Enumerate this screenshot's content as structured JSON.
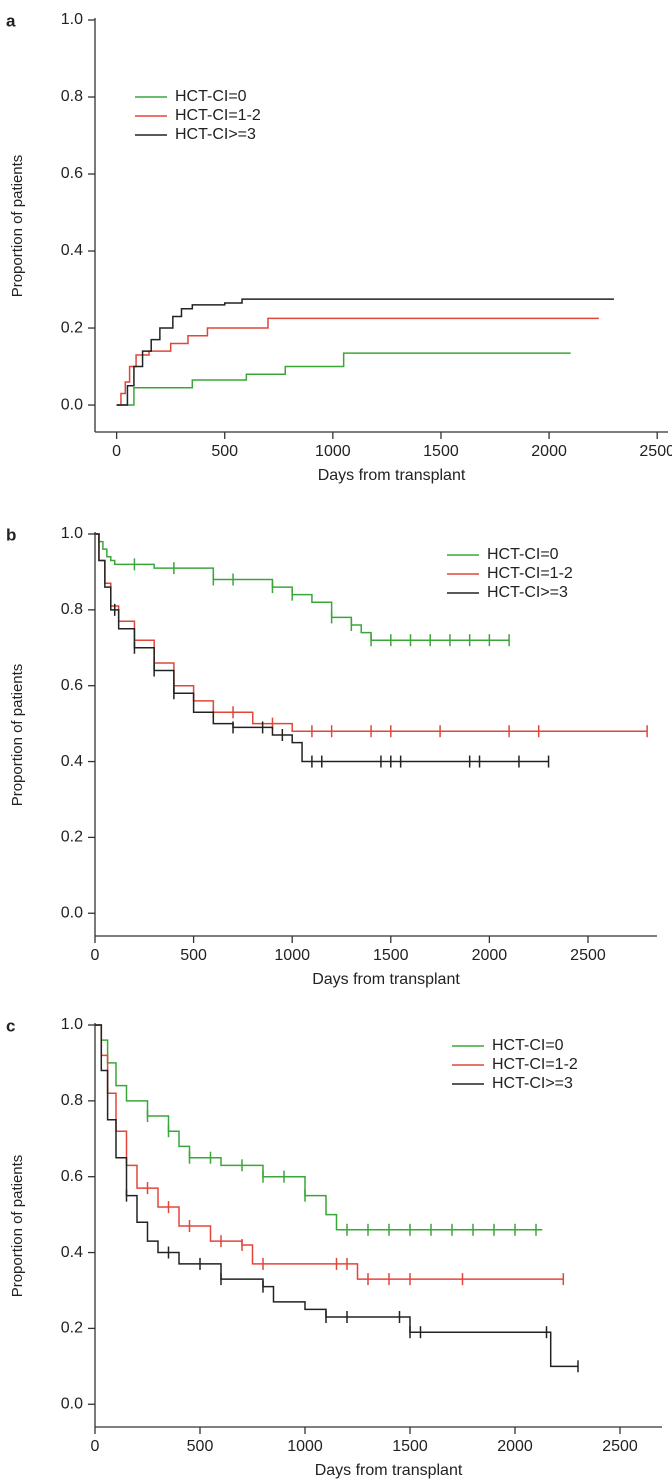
{
  "chart_data": [
    {
      "type": "step",
      "label": "a",
      "xlabel": "Days from transplant",
      "ylabel": "Proportion of patients",
      "xlim": [
        -100,
        2550
      ],
      "ylim": [
        -0.07,
        1.0
      ],
      "xticks": [
        0,
        500,
        1000,
        1500,
        2000,
        2500
      ],
      "yticks": [
        {
          "value": 0,
          "label": "0.0"
        },
        0.2,
        0.4,
        0.6,
        0.8,
        {
          "value": 1,
          "label": "1.0"
        }
      ],
      "legend": "upper left",
      "series": [
        {
          "name": "HCT-CI=0",
          "color": "#3aa63a",
          "x": [
            0,
            80,
            350,
            600,
            780,
            1050,
            2100
          ],
          "values": [
            0,
            0.045,
            0.065,
            0.08,
            0.1,
            0.135,
            0.135
          ]
        },
        {
          "name": "HCT-CI=1-2",
          "color": "#e0473a",
          "x": [
            0,
            20,
            40,
            60,
            90,
            150,
            250,
            330,
            420,
            700,
            2230
          ],
          "values": [
            0,
            0.03,
            0.06,
            0.1,
            0.13,
            0.14,
            0.16,
            0.18,
            0.2,
            0.225,
            0.225
          ]
        },
        {
          "name": "HCT-CI>=3",
          "color": "#222222",
          "x": [
            0,
            50,
            80,
            120,
            160,
            200,
            260,
            300,
            350,
            500,
            580,
            2300
          ],
          "values": [
            0,
            0.05,
            0.1,
            0.14,
            0.17,
            0.2,
            0.23,
            0.25,
            0.26,
            0.265,
            0.275,
            0.275
          ]
        }
      ]
    },
    {
      "type": "step",
      "label": "b",
      "xlabel": "Days from transplant",
      "ylabel": "Proportion of patients",
      "xlim": [
        0,
        2850
      ],
      "ylim": [
        -0.06,
        1.0
      ],
      "xticks": [
        0,
        500,
        1000,
        1500,
        2000,
        2500
      ],
      "yticks": [
        {
          "value": 0,
          "label": "0.0"
        },
        0.2,
        0.4,
        0.6,
        0.8,
        {
          "value": 1,
          "label": "1.0"
        }
      ],
      "legend": "upper right",
      "series": [
        {
          "name": "HCT-CI=0",
          "color": "#3aa63a",
          "x": [
            0,
            20,
            40,
            60,
            80,
            100,
            300,
            600,
            900,
            1000,
            1100,
            1200,
            1300,
            1350,
            1400,
            2100
          ],
          "values": [
            1,
            0.98,
            0.96,
            0.94,
            0.93,
            0.92,
            0.91,
            0.88,
            0.86,
            0.84,
            0.82,
            0.78,
            0.76,
            0.74,
            0.72,
            0.72
          ],
          "censored": {
            "x": [
              200,
              400,
              600,
              700,
              900,
              1000,
              1200,
              1300,
              1400,
              1500,
              1600,
              1700,
              1800,
              1900,
              2000,
              2100
            ],
            "values": [
              0.92,
              0.91,
              0.88,
              0.88,
              0.86,
              0.84,
              0.78,
              0.76,
              0.72,
              0.72,
              0.72,
              0.72,
              0.72,
              0.72,
              0.72,
              0.72
            ]
          }
        },
        {
          "name": "HCT-CI=1-2",
          "color": "#e0473a",
          "x": [
            0,
            20,
            50,
            80,
            120,
            200,
            300,
            400,
            500,
            600,
            800,
            1000,
            2800
          ],
          "values": [
            1,
            0.93,
            0.87,
            0.81,
            0.77,
            0.72,
            0.66,
            0.6,
            0.56,
            0.53,
            0.5,
            0.48,
            0.48
          ],
          "censored": {
            "x": [
              300,
              400,
              600,
              700,
              900,
              1100,
              1200,
              1400,
              1500,
              1750,
              2100,
              2250,
              2800
            ],
            "values": [
              0.66,
              0.6,
              0.53,
              0.53,
              0.5,
              0.48,
              0.48,
              0.48,
              0.48,
              0.48,
              0.48,
              0.48,
              0.48
            ]
          }
        },
        {
          "name": "HCT-CI>=3",
          "color": "#222222",
          "x": [
            0,
            20,
            50,
            80,
            120,
            200,
            300,
            400,
            500,
            600,
            700,
            900,
            1000,
            1050,
            2300
          ],
          "values": [
            1,
            0.93,
            0.86,
            0.8,
            0.75,
            0.7,
            0.64,
            0.58,
            0.53,
            0.5,
            0.49,
            0.47,
            0.45,
            0.4,
            0.4
          ],
          "censored": {
            "x": [
              100,
              200,
              300,
              400,
              700,
              850,
              950,
              1100,
              1150,
              1450,
              1500,
              1550,
              1900,
              1950,
              2150,
              2300
            ],
            "values": [
              0.8,
              0.7,
              0.64,
              0.58,
              0.49,
              0.49,
              0.47,
              0.4,
              0.4,
              0.4,
              0.4,
              0.4,
              0.4,
              0.4,
              0.4,
              0.4
            ]
          }
        }
      ]
    },
    {
      "type": "step",
      "label": "c",
      "xlabel": "Days from transplant",
      "ylabel": "Proportion of patients",
      "xlim": [
        0,
        2700
      ],
      "ylim": [
        -0.06,
        1.0
      ],
      "xticks": [
        0,
        500,
        1000,
        1500,
        2000,
        2500
      ],
      "yticks": [
        {
          "value": 0,
          "label": "0.0"
        },
        0.2,
        0.4,
        0.6,
        0.8,
        {
          "value": 1,
          "label": "1.0"
        }
      ],
      "legend": "upper right",
      "series": [
        {
          "name": "HCT-CI=0",
          "color": "#3aa63a",
          "x": [
            0,
            30,
            60,
            100,
            150,
            250,
            350,
            400,
            450,
            600,
            800,
            1000,
            1100,
            1150,
            2130
          ],
          "values": [
            1,
            0.96,
            0.9,
            0.84,
            0.8,
            0.76,
            0.72,
            0.68,
            0.65,
            0.63,
            0.6,
            0.55,
            0.5,
            0.46,
            0.46
          ],
          "censored": {
            "x": [
              250,
              350,
              450,
              550,
              700,
              800,
              900,
              1000,
              1200,
              1300,
              1400,
              1500,
              1600,
              1700,
              1800,
              1900,
              2000,
              2100
            ],
            "values": [
              0.76,
              0.72,
              0.65,
              0.65,
              0.63,
              0.6,
              0.6,
              0.55,
              0.46,
              0.46,
              0.46,
              0.46,
              0.46,
              0.46,
              0.46,
              0.46,
              0.46,
              0.46
            ]
          }
        },
        {
          "name": "HCT-CI=1-2",
          "color": "#e0473a",
          "x": [
            0,
            30,
            60,
            100,
            150,
            200,
            300,
            400,
            550,
            700,
            750,
            1250,
            2230
          ],
          "values": [
            1,
            0.92,
            0.82,
            0.72,
            0.63,
            0.57,
            0.52,
            0.47,
            0.43,
            0.42,
            0.37,
            0.33,
            0.33
          ],
          "censored": {
            "x": [
              250,
              350,
              450,
              600,
              700,
              800,
              1150,
              1200,
              1300,
              1400,
              1500,
              1750,
              2230
            ],
            "values": [
              0.57,
              0.52,
              0.47,
              0.43,
              0.42,
              0.37,
              0.37,
              0.37,
              0.33,
              0.33,
              0.33,
              0.33,
              0.33
            ]
          }
        },
        {
          "name": "HCT-CI>=3",
          "color": "#222222",
          "x": [
            0,
            30,
            60,
            100,
            150,
            200,
            250,
            300,
            400,
            600,
            800,
            850,
            1000,
            1100,
            1500,
            2170,
            2300
          ],
          "values": [
            1,
            0.88,
            0.75,
            0.65,
            0.55,
            0.48,
            0.43,
            0.4,
            0.37,
            0.33,
            0.31,
            0.27,
            0.25,
            0.23,
            0.19,
            0.1,
            0.1
          ],
          "censored": {
            "x": [
              150,
              350,
              500,
              600,
              800,
              1100,
              1200,
              1450,
              1500,
              1550,
              2150,
              2300
            ],
            "values": [
              0.55,
              0.4,
              0.37,
              0.33,
              0.31,
              0.23,
              0.23,
              0.23,
              0.19,
              0.19,
              0.19,
              0.1
            ]
          }
        }
      ]
    }
  ]
}
